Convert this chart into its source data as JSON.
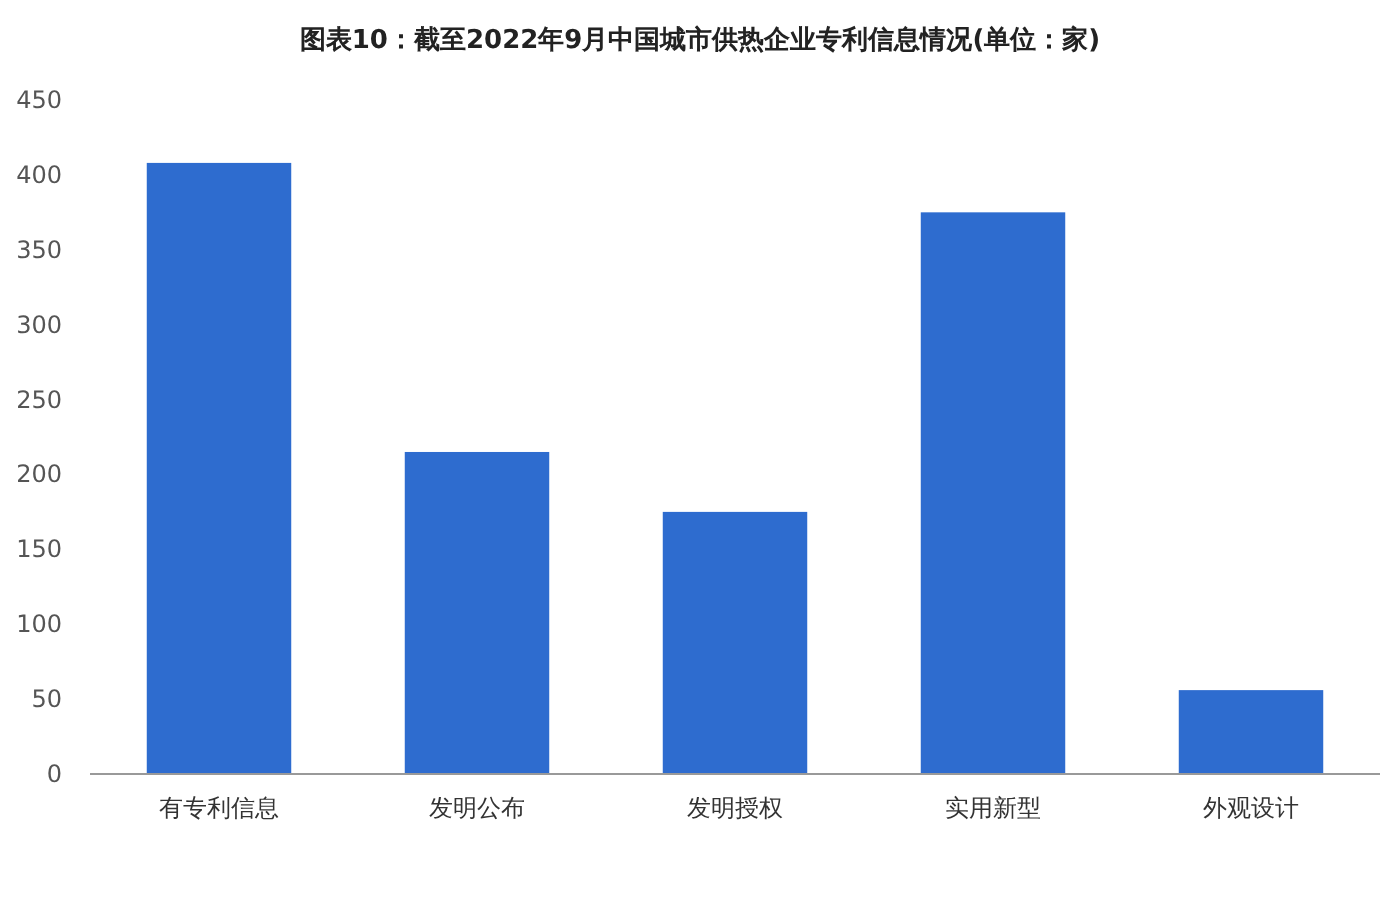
{
  "chart_data": {
    "type": "bar",
    "title": "图表10：截至2022年9月中国城市供热企业专利信息情况(单位：家)",
    "categories": [
      "有专利信息",
      "发明公布",
      "发明授权",
      "实用新型",
      "外观设计"
    ],
    "values": [
      408,
      215,
      175,
      375,
      56
    ],
    "color": "#2e6ccf",
    "ylim": [
      0,
      450
    ],
    "yticks": [
      0,
      50,
      100,
      150,
      200,
      250,
      300,
      350,
      400,
      450
    ]
  }
}
